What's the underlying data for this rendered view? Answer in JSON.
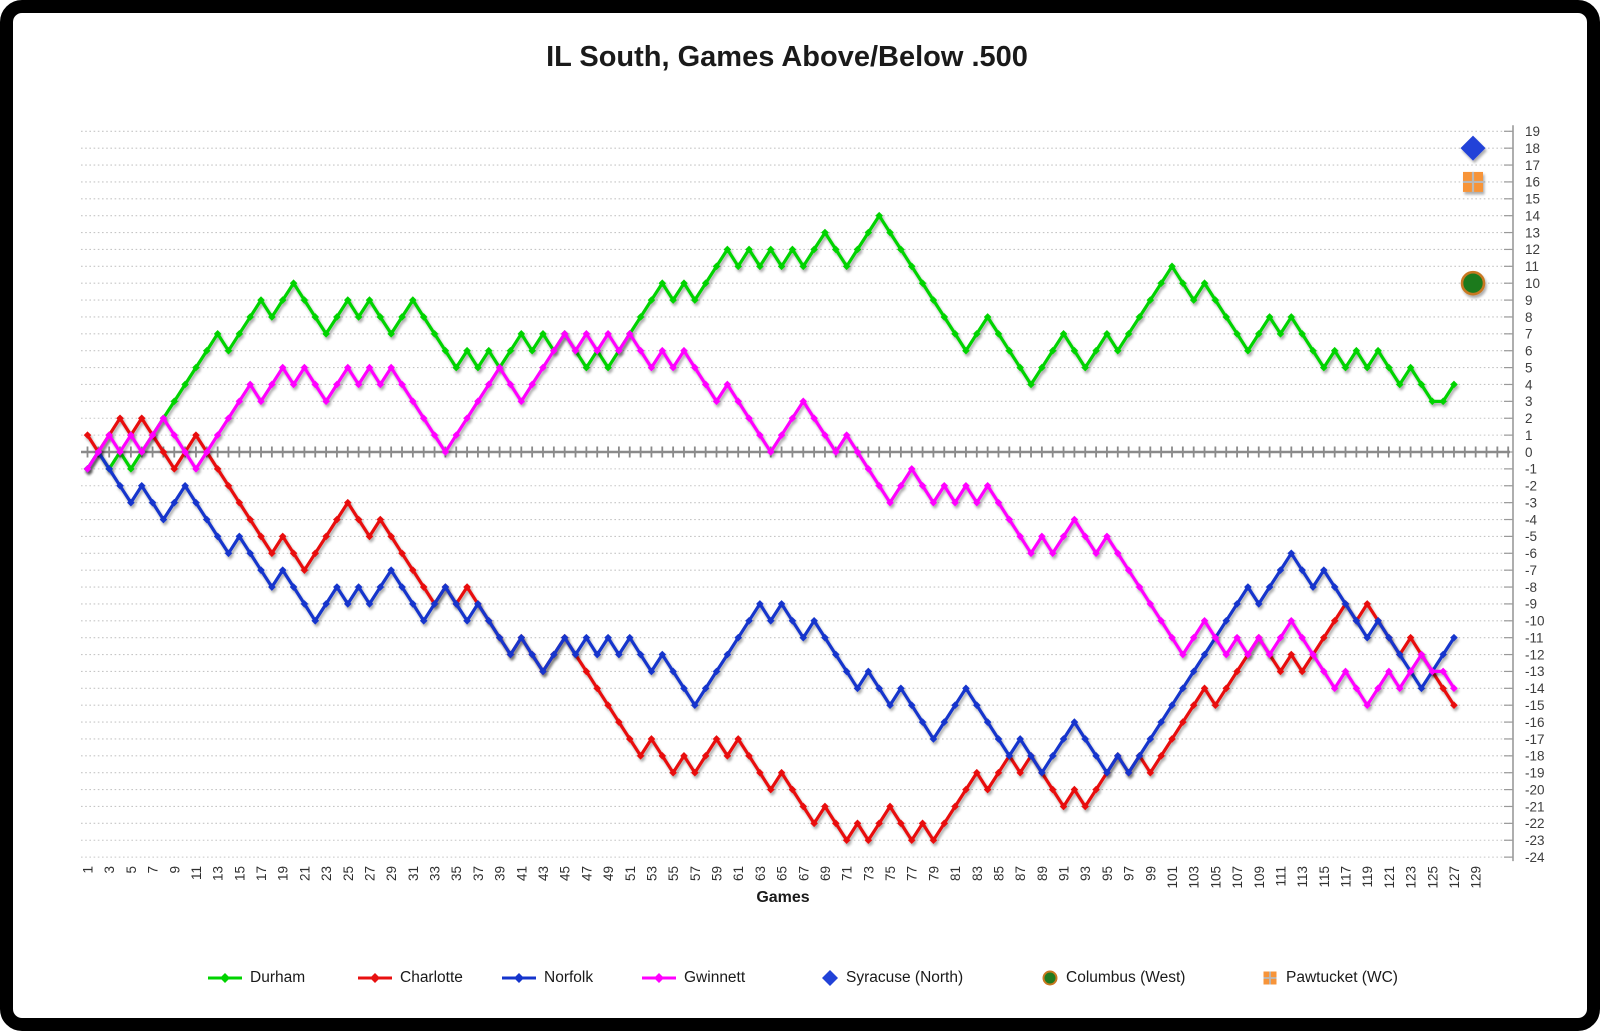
{
  "chart_data": {
    "type": "line",
    "title": "IL South, Games Above/Below .500",
    "xlabel": "Games",
    "ylim": [
      -24,
      19
    ],
    "ytick_step": 1,
    "xticks": {
      "start": 1,
      "end": 129,
      "step": 2
    },
    "x_start": 1,
    "grid": {
      "color": "#c6c6c6",
      "style": "dotted"
    },
    "axis": {
      "zero_line_color": "#8a8a8a",
      "right_line_color": "#9a9a9a",
      "label_color": "#3d3d3d"
    },
    "series": [
      {
        "name": "Durham",
        "color": "#00d300",
        "values": [
          -1,
          0,
          -1,
          0,
          -1,
          0,
          1,
          2,
          3,
          4,
          5,
          6,
          7,
          6,
          7,
          8,
          9,
          8,
          9,
          10,
          9,
          8,
          7,
          8,
          9,
          8,
          9,
          8,
          7,
          8,
          9,
          8,
          7,
          6,
          5,
          6,
          5,
          6,
          5,
          6,
          7,
          6,
          7,
          6,
          7,
          6,
          5,
          6,
          5,
          6,
          7,
          8,
          9,
          10,
          9,
          10,
          9,
          10,
          11,
          12,
          11,
          12,
          11,
          12,
          11,
          12,
          11,
          12,
          13,
          12,
          11,
          12,
          13,
          14,
          13,
          12,
          11,
          10,
          9,
          8,
          7,
          6,
          7,
          8,
          7,
          6,
          5,
          4,
          5,
          6,
          7,
          6,
          5,
          6,
          7,
          6,
          7,
          8,
          9,
          10,
          11,
          10,
          9,
          10,
          9,
          8,
          7,
          6,
          7,
          8,
          7,
          8,
          7,
          6,
          5,
          6,
          5,
          6,
          5,
          6,
          5,
          4,
          5,
          4,
          3,
          3,
          4
        ]
      },
      {
        "name": "Charlotte",
        "color": "#e81010",
        "values": [
          1,
          0,
          1,
          2,
          1,
          2,
          1,
          0,
          -1,
          0,
          1,
          0,
          -1,
          -2,
          -3,
          -4,
          -5,
          -6,
          -5,
          -6,
          -7,
          -6,
          -5,
          -4,
          -3,
          -4,
          -5,
          -4,
          -5,
          -6,
          -7,
          -8,
          -9,
          -8,
          -9,
          -8,
          -9,
          -10,
          -11,
          -12,
          -11,
          -12,
          -13,
          -12,
          -11,
          -12,
          -13,
          -14,
          -15,
          -16,
          -17,
          -18,
          -17,
          -18,
          -19,
          -18,
          -19,
          -18,
          -17,
          -18,
          -17,
          -18,
          -19,
          -20,
          -19,
          -20,
          -21,
          -22,
          -21,
          -22,
          -23,
          -22,
          -23,
          -22,
          -21,
          -22,
          -23,
          -22,
          -23,
          -22,
          -21,
          -20,
          -19,
          -20,
          -19,
          -18,
          -19,
          -18,
          -19,
          -20,
          -21,
          -20,
          -21,
          -20,
          -19,
          -18,
          -19,
          -18,
          -19,
          -18,
          -17,
          -16,
          -15,
          -14,
          -15,
          -14,
          -13,
          -12,
          -11,
          -12,
          -13,
          -12,
          -13,
          -12,
          -11,
          -10,
          -9,
          -10,
          -9,
          -10,
          -11,
          -12,
          -11,
          -12,
          -13,
          -14,
          -15
        ]
      },
      {
        "name": "Norfolk",
        "color": "#1434cc",
        "values": [
          -1,
          0,
          -1,
          -2,
          -3,
          -2,
          -3,
          -4,
          -3,
          -2,
          -3,
          -4,
          -5,
          -6,
          -5,
          -6,
          -7,
          -8,
          -7,
          -8,
          -9,
          -10,
          -9,
          -8,
          -9,
          -8,
          -9,
          -8,
          -7,
          -8,
          -9,
          -10,
          -9,
          -8,
          -9,
          -10,
          -9,
          -10,
          -11,
          -12,
          -11,
          -12,
          -13,
          -12,
          -11,
          -12,
          -11,
          -12,
          -11,
          -12,
          -11,
          -12,
          -13,
          -12,
          -13,
          -14,
          -15,
          -14,
          -13,
          -12,
          -11,
          -10,
          -9,
          -10,
          -9,
          -10,
          -11,
          -10,
          -11,
          -12,
          -13,
          -14,
          -13,
          -14,
          -15,
          -14,
          -15,
          -16,
          -17,
          -16,
          -15,
          -14,
          -15,
          -16,
          -17,
          -18,
          -17,
          -18,
          -19,
          -18,
          -17,
          -16,
          -17,
          -18,
          -19,
          -18,
          -19,
          -18,
          -17,
          -16,
          -15,
          -14,
          -13,
          -12,
          -11,
          -10,
          -9,
          -8,
          -9,
          -8,
          -7,
          -6,
          -7,
          -8,
          -7,
          -8,
          -9,
          -10,
          -11,
          -10,
          -11,
          -12,
          -13,
          -14,
          -13,
          -12,
          -11
        ]
      },
      {
        "name": "Gwinnett",
        "color": "#ff00ff",
        "values": [
          -1,
          0,
          1,
          0,
          1,
          0,
          1,
          2,
          1,
          0,
          -1,
          0,
          1,
          2,
          3,
          4,
          3,
          4,
          5,
          4,
          5,
          4,
          3,
          4,
          5,
          4,
          5,
          4,
          5,
          4,
          3,
          2,
          1,
          0,
          1,
          2,
          3,
          4,
          5,
          4,
          3,
          4,
          5,
          6,
          7,
          6,
          7,
          6,
          7,
          6,
          7,
          6,
          5,
          6,
          5,
          6,
          5,
          4,
          3,
          4,
          3,
          2,
          1,
          0,
          1,
          2,
          3,
          2,
          1,
          0,
          1,
          0,
          -1,
          -2,
          -3,
          -2,
          -1,
          -2,
          -3,
          -2,
          -3,
          -2,
          -3,
          -2,
          -3,
          -4,
          -5,
          -6,
          -5,
          -6,
          -5,
          -4,
          -5,
          -6,
          -5,
          -6,
          -7,
          -8,
          -9,
          -10,
          -11,
          -12,
          -11,
          -10,
          -11,
          -12,
          -11,
          -12,
          -11,
          -12,
          -11,
          -10,
          -11,
          -12,
          -13,
          -14,
          -13,
          -14,
          -15,
          -14,
          -13,
          -14,
          -13,
          -12,
          -13,
          -13,
          -14
        ]
      }
    ],
    "standalone_points": [
      {
        "name": "Syracuse (North)",
        "marker": "diamond",
        "color": "#2142d8",
        "value": 18
      },
      {
        "name": "Columbus (West)",
        "marker": "circle",
        "color": "#1f7a1f",
        "outline": "#c87820",
        "value": 10
      },
      {
        "name": "Pawtucket (WC)",
        "marker": "square",
        "color": "#f79439",
        "cross_color": "#b9b9b9",
        "value": 16
      }
    ]
  }
}
